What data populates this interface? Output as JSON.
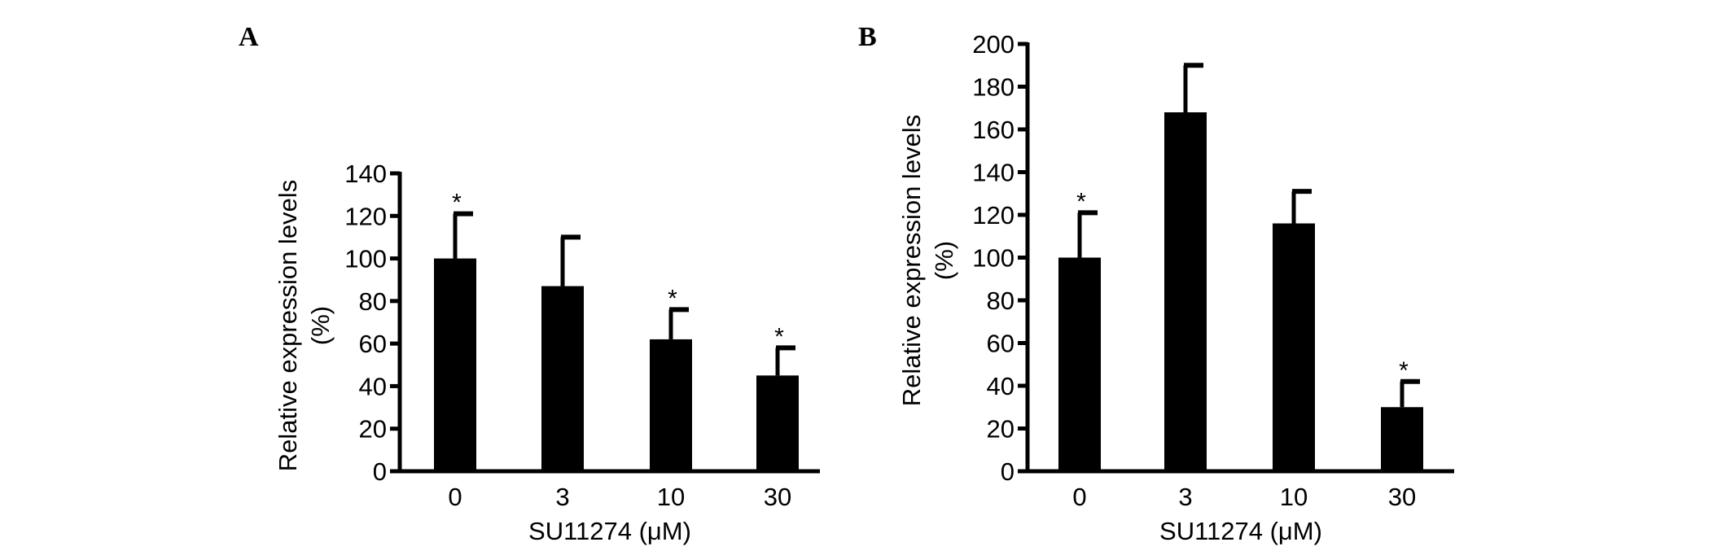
{
  "chart_data": [
    {
      "type": "bar",
      "panel_label": "A",
      "categories": [
        "0",
        "3",
        "10",
        "30"
      ],
      "values": [
        100,
        87,
        62,
        45
      ],
      "error_upper": [
        121,
        110,
        76,
        58
      ],
      "significance": [
        "*",
        "",
        "*",
        "*"
      ],
      "xlabel": "SU11274 (μM)",
      "ylabel_line1": "Relative expression levels",
      "ylabel_line2": "(%)",
      "ylim": [
        0,
        140
      ],
      "yticks": [
        0,
        20,
        40,
        60,
        80,
        100,
        120,
        140
      ],
      "bar_color": "#000000",
      "grid": false
    },
    {
      "type": "bar",
      "panel_label": "B",
      "categories": [
        "0",
        "3",
        "10",
        "30"
      ],
      "values": [
        100,
        168,
        116,
        30
      ],
      "error_upper": [
        121,
        190,
        131,
        42
      ],
      "significance": [
        "*",
        "",
        "",
        "*"
      ],
      "xlabel": "SU11274 (μM)",
      "ylabel_line1": "Relative expression levels",
      "ylabel_line2": "(%)",
      "ylim": [
        0,
        200
      ],
      "yticks": [
        0,
        20,
        40,
        60,
        80,
        100,
        120,
        140,
        160,
        180,
        200
      ],
      "bar_color": "#000000",
      "grid": false
    }
  ]
}
